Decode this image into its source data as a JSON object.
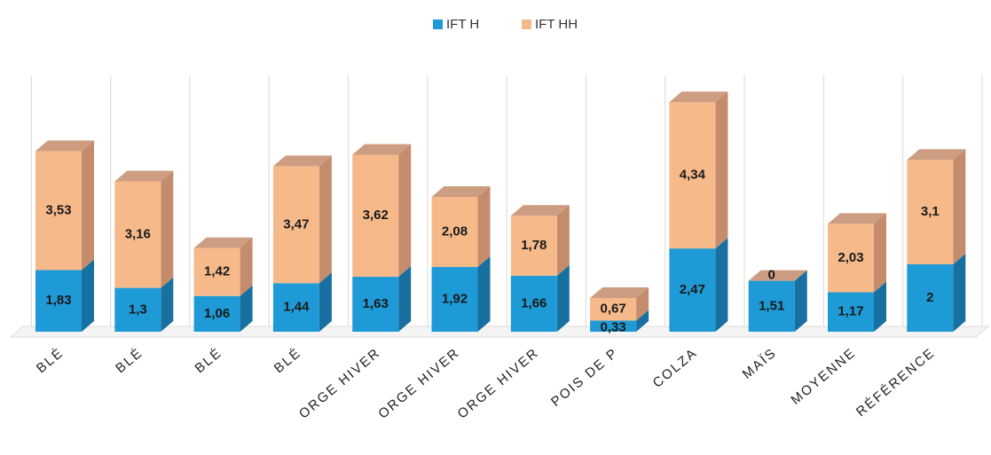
{
  "chart_data": {
    "type": "bar3d_stacked",
    "categories": [
      "BLÉ",
      "BLÉ",
      "BLÉ",
      "BLÉ",
      "ORGE HIVER",
      "ORGE HIVER",
      "ORGE HIVER",
      "POIS DE P",
      "COLZA",
      "MAÏS",
      "MOYENNE",
      "RÉFÉRENCE"
    ],
    "series": [
      {
        "name": "IFT H",
        "color": "#1e9ad6",
        "side_color": "#17709f",
        "values": [
          1.83,
          1.3,
          1.06,
          1.44,
          1.63,
          1.92,
          1.66,
          0.33,
          2.47,
          1.51,
          1.17,
          2
        ],
        "value_labels": [
          "1,83",
          "1,3",
          "1,06",
          "1,44",
          "1,63",
          "1,92",
          "1,66",
          "0,33",
          "2,47",
          "1,51",
          "1,17",
          "2"
        ]
      },
      {
        "name": "IFT HH",
        "color": "#f6b98a",
        "side_color": "#c48c6c",
        "values": [
          3.53,
          3.16,
          1.42,
          3.47,
          3.62,
          2.08,
          1.78,
          0.67,
          4.34,
          0,
          2.03,
          3.1
        ],
        "value_labels": [
          "3,53",
          "3,16",
          "1,42",
          "3,47",
          "3,62",
          "2,08",
          "1,78",
          "0,67",
          "4,34",
          "0",
          "2,03",
          "3,1"
        ]
      }
    ],
    "legend": "top"
  }
}
